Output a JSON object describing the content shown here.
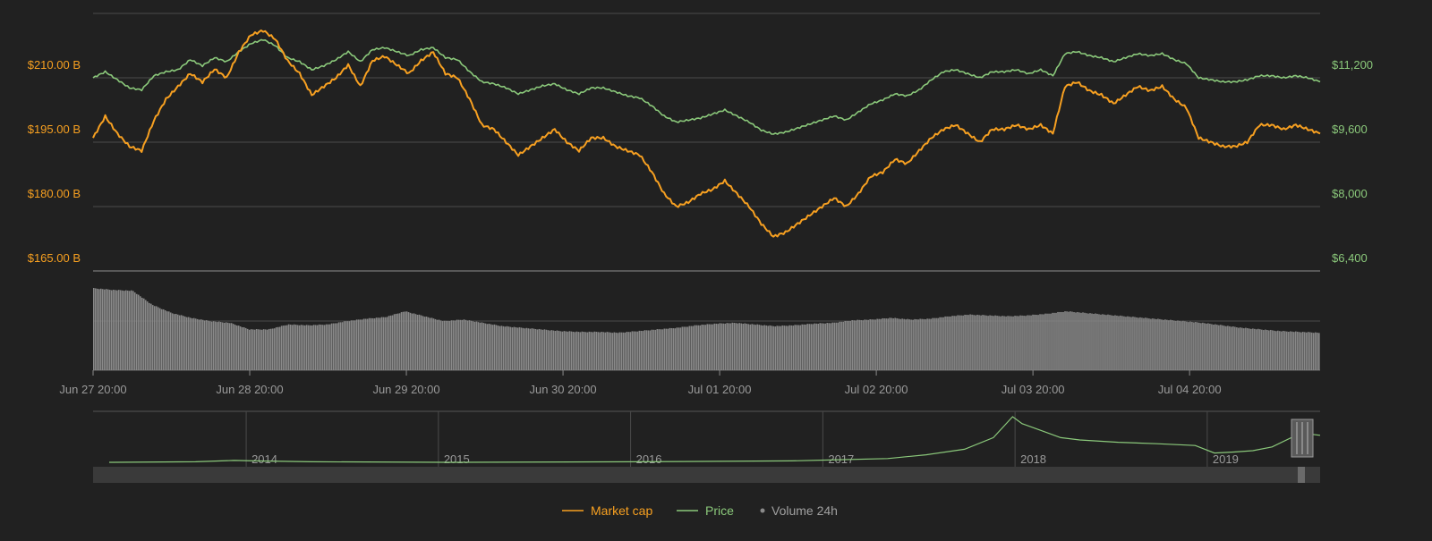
{
  "chart_data": {
    "type": "line",
    "colors": {
      "market_cap": "#f7a021",
      "price": "#8bc97b",
      "volume": "#8a8a8a",
      "grid": "#4a4a4a",
      "background": "#212121"
    },
    "x_ticks": [
      "Jun 27 20:00",
      "Jun 28 20:00",
      "Jun 29 20:00",
      "Jun 30 20:00",
      "Jul 01 20:00",
      "Jul 02 20:00",
      "Jul 03 20:00",
      "Jul 04 20:00"
    ],
    "x_range_hours": [
      0,
      188
    ],
    "left_axis": {
      "series": "Market cap",
      "ticks": [
        "$165.00 B",
        "$180.00 B",
        "$195.00 B",
        "$210.00 B"
      ],
      "tick_values": [
        165,
        180,
        195,
        210
      ],
      "range": [
        165,
        225
      ]
    },
    "right_axis": {
      "series": "Price",
      "ticks": [
        "$6,400",
        "$8,000",
        "$9,600",
        "$11,200"
      ],
      "tick_values": [
        6400,
        8000,
        9600,
        11200
      ],
      "range": [
        6400,
        12800
      ]
    },
    "grid": true,
    "legend_position": "bottom-center",
    "series": [
      {
        "name": "Market cap",
        "unit": "billion USD",
        "points": [
          [
            0,
            196
          ],
          [
            2,
            201
          ],
          [
            4,
            197
          ],
          [
            6,
            194
          ],
          [
            8,
            193
          ],
          [
            10,
            200
          ],
          [
            12,
            205
          ],
          [
            14,
            208
          ],
          [
            16,
            211
          ],
          [
            18,
            209
          ],
          [
            20,
            212
          ],
          [
            22,
            210
          ],
          [
            24,
            216
          ],
          [
            26,
            220
          ],
          [
            28,
            221
          ],
          [
            30,
            219
          ],
          [
            32,
            214
          ],
          [
            34,
            211
          ],
          [
            36,
            206
          ],
          [
            38,
            208
          ],
          [
            40,
            210
          ],
          [
            42,
            213
          ],
          [
            44,
            208
          ],
          [
            46,
            214
          ],
          [
            48,
            215
          ],
          [
            50,
            213
          ],
          [
            52,
            211
          ],
          [
            54,
            214
          ],
          [
            56,
            216
          ],
          [
            58,
            211
          ],
          [
            60,
            210
          ],
          [
            62,
            205
          ],
          [
            64,
            199
          ],
          [
            66,
            198
          ],
          [
            68,
            195
          ],
          [
            70,
            192
          ],
          [
            72,
            194
          ],
          [
            74,
            196
          ],
          [
            76,
            198
          ],
          [
            78,
            195
          ],
          [
            80,
            193
          ],
          [
            82,
            196
          ],
          [
            84,
            196
          ],
          [
            86,
            194
          ],
          [
            88,
            193
          ],
          [
            90,
            192
          ],
          [
            92,
            188
          ],
          [
            94,
            183
          ],
          [
            96,
            180
          ],
          [
            98,
            181
          ],
          [
            100,
            183
          ],
          [
            102,
            184
          ],
          [
            104,
            186
          ],
          [
            106,
            183
          ],
          [
            108,
            180
          ],
          [
            110,
            176
          ],
          [
            112,
            173
          ],
          [
            114,
            174
          ],
          [
            116,
            176
          ],
          [
            118,
            178
          ],
          [
            120,
            180
          ],
          [
            122,
            182
          ],
          [
            124,
            180
          ],
          [
            126,
            183
          ],
          [
            128,
            187
          ],
          [
            130,
            188
          ],
          [
            132,
            191
          ],
          [
            134,
            190
          ],
          [
            136,
            193
          ],
          [
            138,
            196
          ],
          [
            140,
            198
          ],
          [
            142,
            199
          ],
          [
            144,
            197
          ],
          [
            146,
            195
          ],
          [
            148,
            198
          ],
          [
            150,
            198
          ],
          [
            152,
            199
          ],
          [
            154,
            198
          ],
          [
            156,
            199
          ],
          [
            158,
            197
          ],
          [
            160,
            208
          ],
          [
            162,
            209
          ],
          [
            164,
            207
          ],
          [
            166,
            206
          ],
          [
            168,
            204
          ],
          [
            170,
            206
          ],
          [
            172,
            208
          ],
          [
            174,
            207
          ],
          [
            176,
            208
          ],
          [
            178,
            205
          ],
          [
            180,
            203
          ],
          [
            182,
            196
          ],
          [
            184,
            195
          ],
          [
            186,
            194
          ],
          [
            188,
            194
          ],
          [
            190,
            195
          ],
          [
            192,
            199
          ],
          [
            194,
            199
          ],
          [
            196,
            198
          ],
          [
            198,
            199
          ],
          [
            200,
            198
          ],
          [
            202,
            197
          ]
        ]
      },
      {
        "name": "Price",
        "unit": "USD",
        "points": [
          [
            0,
            11200
          ],
          [
            2,
            11350
          ],
          [
            4,
            11150
          ],
          [
            6,
            10950
          ],
          [
            8,
            10900
          ],
          [
            10,
            11250
          ],
          [
            12,
            11350
          ],
          [
            14,
            11400
          ],
          [
            16,
            11650
          ],
          [
            18,
            11500
          ],
          [
            20,
            11700
          ],
          [
            22,
            11600
          ],
          [
            24,
            11850
          ],
          [
            26,
            12050
          ],
          [
            28,
            12150
          ],
          [
            30,
            12000
          ],
          [
            32,
            11700
          ],
          [
            34,
            11600
          ],
          [
            36,
            11400
          ],
          [
            38,
            11500
          ],
          [
            40,
            11650
          ],
          [
            42,
            11850
          ],
          [
            44,
            11600
          ],
          [
            46,
            11900
          ],
          [
            48,
            11950
          ],
          [
            50,
            11850
          ],
          [
            52,
            11750
          ],
          [
            54,
            11900
          ],
          [
            56,
            11950
          ],
          [
            58,
            11700
          ],
          [
            60,
            11650
          ],
          [
            62,
            11350
          ],
          [
            64,
            11100
          ],
          [
            66,
            11050
          ],
          [
            68,
            10950
          ],
          [
            70,
            10800
          ],
          [
            72,
            10900
          ],
          [
            74,
            11000
          ],
          [
            76,
            11050
          ],
          [
            78,
            10900
          ],
          [
            80,
            10800
          ],
          [
            82,
            10950
          ],
          [
            84,
            10950
          ],
          [
            86,
            10850
          ],
          [
            88,
            10750
          ],
          [
            90,
            10700
          ],
          [
            92,
            10500
          ],
          [
            94,
            10250
          ],
          [
            96,
            10100
          ],
          [
            98,
            10150
          ],
          [
            100,
            10200
          ],
          [
            102,
            10300
          ],
          [
            104,
            10400
          ],
          [
            106,
            10250
          ],
          [
            108,
            10100
          ],
          [
            110,
            9900
          ],
          [
            112,
            9800
          ],
          [
            114,
            9850
          ],
          [
            116,
            9950
          ],
          [
            118,
            10050
          ],
          [
            120,
            10150
          ],
          [
            122,
            10250
          ],
          [
            124,
            10150
          ],
          [
            126,
            10350
          ],
          [
            128,
            10550
          ],
          [
            130,
            10650
          ],
          [
            132,
            10800
          ],
          [
            134,
            10750
          ],
          [
            136,
            10900
          ],
          [
            138,
            11150
          ],
          [
            140,
            11350
          ],
          [
            142,
            11400
          ],
          [
            144,
            11300
          ],
          [
            146,
            11200
          ],
          [
            148,
            11350
          ],
          [
            150,
            11350
          ],
          [
            152,
            11400
          ],
          [
            154,
            11300
          ],
          [
            156,
            11400
          ],
          [
            158,
            11250
          ],
          [
            160,
            11800
          ],
          [
            162,
            11850
          ],
          [
            164,
            11750
          ],
          [
            166,
            11700
          ],
          [
            168,
            11600
          ],
          [
            170,
            11700
          ],
          [
            172,
            11800
          ],
          [
            174,
            11750
          ],
          [
            176,
            11800
          ],
          [
            178,
            11650
          ],
          [
            180,
            11550
          ],
          [
            182,
            11200
          ],
          [
            184,
            11150
          ],
          [
            186,
            11100
          ],
          [
            188,
            11100
          ],
          [
            190,
            11150
          ],
          [
            192,
            11250
          ],
          [
            194,
            11250
          ],
          [
            196,
            11200
          ],
          [
            198,
            11250
          ],
          [
            200,
            11200
          ],
          [
            202,
            11100
          ]
        ]
      },
      {
        "name": "Volume 24h",
        "unit": "relative",
        "points": [
          [
            0,
            1.0
          ],
          [
            10,
            0.98
          ],
          [
            20,
            0.97
          ],
          [
            30,
            0.8
          ],
          [
            40,
            0.7
          ],
          [
            50,
            0.64
          ],
          [
            60,
            0.6
          ],
          [
            70,
            0.58
          ],
          [
            80,
            0.5
          ],
          [
            90,
            0.5
          ],
          [
            100,
            0.56
          ],
          [
            110,
            0.55
          ],
          [
            120,
            0.56
          ],
          [
            130,
            0.6
          ],
          [
            140,
            0.63
          ],
          [
            150,
            0.65
          ],
          [
            160,
            0.72
          ],
          [
            170,
            0.66
          ],
          [
            180,
            0.6
          ],
          [
            190,
            0.62
          ],
          [
            200,
            0.58
          ],
          [
            210,
            0.54
          ],
          [
            220,
            0.52
          ],
          [
            230,
            0.5
          ],
          [
            240,
            0.48
          ],
          [
            250,
            0.47
          ],
          [
            260,
            0.47
          ],
          [
            270,
            0.46
          ],
          [
            280,
            0.48
          ],
          [
            290,
            0.5
          ],
          [
            300,
            0.52
          ],
          [
            310,
            0.55
          ],
          [
            320,
            0.57
          ],
          [
            330,
            0.58
          ],
          [
            340,
            0.56
          ],
          [
            350,
            0.54
          ],
          [
            360,
            0.55
          ],
          [
            370,
            0.57
          ],
          [
            380,
            0.58
          ],
          [
            390,
            0.61
          ],
          [
            400,
            0.62
          ],
          [
            410,
            0.64
          ],
          [
            420,
            0.62
          ],
          [
            430,
            0.63
          ],
          [
            440,
            0.66
          ],
          [
            450,
            0.68
          ],
          [
            460,
            0.67
          ],
          [
            470,
            0.66
          ],
          [
            480,
            0.67
          ],
          [
            490,
            0.69
          ],
          [
            500,
            0.72
          ],
          [
            510,
            0.7
          ],
          [
            520,
            0.68
          ],
          [
            530,
            0.66
          ],
          [
            540,
            0.64
          ],
          [
            550,
            0.62
          ],
          [
            560,
            0.6
          ],
          [
            570,
            0.58
          ],
          [
            580,
            0.55
          ],
          [
            590,
            0.52
          ],
          [
            600,
            0.5
          ],
          [
            610,
            0.48
          ],
          [
            620,
            0.47
          ],
          [
            630,
            0.46
          ]
        ]
      }
    ],
    "navigator": {
      "x_ticks": [
        "2014",
        "2015",
        "2016",
        "2017",
        "2018",
        "2019"
      ],
      "tick_years": [
        2014,
        2015,
        2016,
        2017,
        2018,
        2019
      ],
      "x_range_years": [
        2013.25,
        2019.55
      ],
      "series": {
        "name": "Price",
        "points": [
          [
            2013.25,
            0.02
          ],
          [
            2013.7,
            0.03
          ],
          [
            2013.9,
            0.06
          ],
          [
            2014.0,
            0.05
          ],
          [
            2014.3,
            0.03
          ],
          [
            2015.0,
            0.02
          ],
          [
            2016.0,
            0.03
          ],
          [
            2016.8,
            0.05
          ],
          [
            2017.0,
            0.07
          ],
          [
            2017.3,
            0.1
          ],
          [
            2017.5,
            0.18
          ],
          [
            2017.7,
            0.3
          ],
          [
            2017.85,
            0.55
          ],
          [
            2017.95,
            1.0
          ],
          [
            2018.0,
            0.85
          ],
          [
            2018.1,
            0.7
          ],
          [
            2018.2,
            0.55
          ],
          [
            2018.3,
            0.5
          ],
          [
            2018.5,
            0.45
          ],
          [
            2018.7,
            0.42
          ],
          [
            2018.9,
            0.38
          ],
          [
            2019.0,
            0.22
          ],
          [
            2019.1,
            0.24
          ],
          [
            2019.2,
            0.27
          ],
          [
            2019.3,
            0.35
          ],
          [
            2019.45,
            0.65
          ],
          [
            2019.55,
            0.6
          ]
        ]
      }
    },
    "legend": [
      {
        "label": "Market cap",
        "style": "line",
        "color": "#f7a021"
      },
      {
        "label": "Price",
        "style": "line",
        "color": "#8bc97b"
      },
      {
        "label": "Volume 24h",
        "style": "dot",
        "color": "#8a8a8a"
      }
    ]
  }
}
